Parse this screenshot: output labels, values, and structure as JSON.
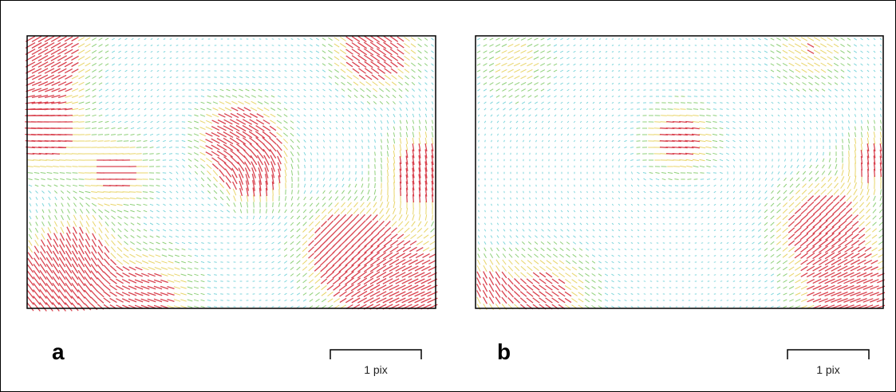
{
  "panels": [
    {
      "label": "a",
      "scale_label": "1 pix"
    },
    {
      "label": "b",
      "scale_label": "1 pix"
    }
  ]
}
